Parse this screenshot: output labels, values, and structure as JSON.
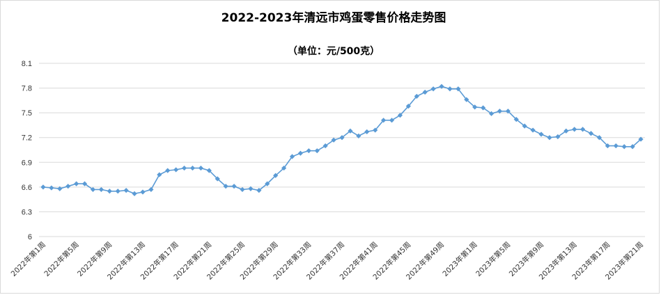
{
  "chart_data": {
    "type": "line",
    "title": "2022-2023年清远市鸡蛋零售价格走势图",
    "subtitle": "（单位：元/500克）",
    "xlabel": "",
    "ylabel": "",
    "ylim": [
      6,
      8.1
    ],
    "y_ticks": [
      "6",
      "6.3",
      "6.6",
      "6.9",
      "7.2",
      "7.5",
      "7.8",
      "8.1"
    ],
    "grid": true,
    "legend": "none",
    "color": "#5b9bd5",
    "x": [
      "2022年第1周",
      "2022年第2周",
      "2022年第3周",
      "2022年第4周",
      "2022年第5周",
      "2022年第6周",
      "2022年第7周",
      "2022年第8周",
      "2022年第9周",
      "2022年第10周",
      "2022年第11周",
      "2022年第12周",
      "2022年第13周",
      "2022年第14周",
      "2022年第15周",
      "2022年第16周",
      "2022年第17周",
      "2022年第18周",
      "2022年第19周",
      "2022年第20周",
      "2022年第21周",
      "2022年第22周",
      "2022年第23周",
      "2022年第24周",
      "2022年第25周",
      "2022年第26周",
      "2022年第27周",
      "2022年第28周",
      "2022年第29周",
      "2022年第30周",
      "2022年第31周",
      "2022年第32周",
      "2022年第33周",
      "2022年第34周",
      "2022年第35周",
      "2022年第36周",
      "2022年第37周",
      "2022年第38周",
      "2022年第39周",
      "2022年第40周",
      "2022年第41周",
      "2022年第42周",
      "2022年第43周",
      "2022年第44周",
      "2022年第45周",
      "2022年第46周",
      "2022年第47周",
      "2022年第48周",
      "2022年第49周",
      "2022年第50周",
      "2022年第51周",
      "2022年第52周",
      "2023年第1周",
      "2023年第2周",
      "2023年第3周",
      "2023年第4周",
      "2023年第5周",
      "2023年第6周",
      "2023年第7周",
      "2023年第8周",
      "2023年第9周",
      "2023年第10周",
      "2023年第11周",
      "2023年第12周",
      "2023年第13周",
      "2023年第14周",
      "2023年第15周",
      "2023年第16周",
      "2023年第17周",
      "2023年第18周",
      "2023年第19周",
      "2023年第20周",
      "2023年第21周"
    ],
    "x_tick_labels": [
      "2022年第1周",
      "2022年第5周",
      "2022年第9周",
      "2022年第13周",
      "2022年第17周",
      "2022年第21周",
      "2022年第25周",
      "2022年第29周",
      "2022年第33周",
      "2022年第37周",
      "2022年第41周",
      "2022年第45周",
      "2022年第49周",
      "2023年第1周",
      "2023年第5周",
      "2023年第9周",
      "2023年第13周",
      "2023年第17周",
      "2023年第21周"
    ],
    "values": [
      6.6,
      6.59,
      6.58,
      6.61,
      6.64,
      6.64,
      6.57,
      6.57,
      6.55,
      6.55,
      6.56,
      6.52,
      6.54,
      6.57,
      6.75,
      6.8,
      6.81,
      6.83,
      6.83,
      6.83,
      6.8,
      6.7,
      6.61,
      6.61,
      6.57,
      6.58,
      6.56,
      6.64,
      6.74,
      6.83,
      6.97,
      7.01,
      7.04,
      7.04,
      7.1,
      7.17,
      7.2,
      7.28,
      7.22,
      7.27,
      7.29,
      7.41,
      7.41,
      7.47,
      7.58,
      7.7,
      7.75,
      7.79,
      7.82,
      7.79,
      7.79,
      7.66,
      7.57,
      7.56,
      7.49,
      7.52,
      7.52,
      7.42,
      7.34,
      7.29,
      7.24,
      7.2,
      7.21,
      7.28,
      7.3,
      7.3,
      7.25,
      7.2,
      7.1,
      7.1,
      7.09,
      7.09,
      7.18
    ]
  }
}
